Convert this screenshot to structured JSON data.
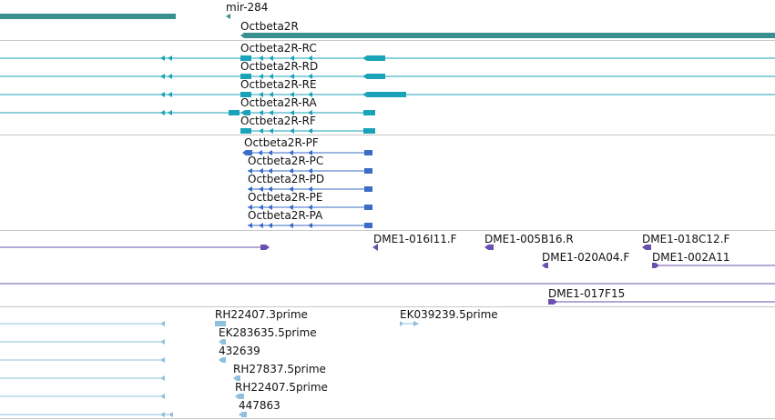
{
  "colors": {
    "gene": "#3a8f8f",
    "transcript": "#1aa3b8",
    "protein": "#3a6cc8",
    "clone": "#6a4fb0",
    "est": "#8fc0de",
    "separator": "#c8c8c8"
  },
  "gene_track": {
    "labels": [
      "mir-284",
      "Octbeta2R"
    ]
  },
  "transcript_track": {
    "labels": [
      "Octbeta2R-RC",
      "Octbeta2R-RD",
      "Octbeta2R-RE",
      "Octbeta2R-RA",
      "Octbeta2R-RF"
    ]
  },
  "protein_track": {
    "labels": [
      "Octbeta2R-PF",
      "Octbeta2R-PC",
      "Octbeta2R-PD",
      "Octbeta2R-PE",
      "Octbeta2R-PA"
    ]
  },
  "clone_track": {
    "labels": [
      "DME1-016I11.F",
      "DME1-005B16.R",
      "DME1-018C12.F",
      "DME1-020A04.F",
      "DME1-002A11",
      "DME1-017F15"
    ]
  },
  "est_track": {
    "labels": [
      "RH22407.3prime",
      "EK039239.5prime",
      "EK283635.5prime",
      "432639",
      "RH27837.5prime",
      "RH22407.5prime",
      "447863"
    ]
  }
}
